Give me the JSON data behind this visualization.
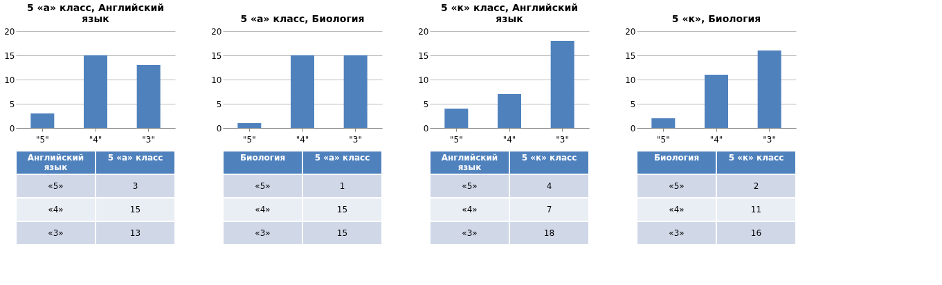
{
  "chart_data": [
    {
      "type": "bar",
      "title": "5 «а» класс, Английский язык",
      "categories": [
        "\"5\"",
        "\"4\"",
        "\"3\""
      ],
      "values": [
        3,
        15,
        13
      ],
      "color": "#4f81bd",
      "ylim": [
        0,
        20
      ],
      "yticks": [
        0,
        5,
        10,
        15,
        20
      ],
      "grid": "y",
      "annotations": [
        "Английский язык",
        "5 «а» класс",
        "«5»",
        "3",
        "«4»",
        "15",
        "«3»",
        "13"
      ]
    },
    {
      "type": "bar",
      "title": "5 «а» класс, Биология",
      "categories": [
        "\"5\"",
        "\"4\"",
        "\"3\""
      ],
      "values": [
        1,
        15,
        15
      ],
      "color": "#4f81bd",
      "ylim": [
        0,
        20
      ],
      "yticks": [
        0,
        5,
        10,
        15,
        20
      ],
      "grid": "y",
      "annotations": [
        "Биология",
        "5 «а» класс",
        "«5»",
        "1",
        "«4»",
        "15",
        "«3»",
        "15"
      ]
    },
    {
      "type": "bar",
      "title": "5 «к» класс, Английский язык",
      "categories": [
        "\"5\"",
        "\"4\"",
        "\"3\""
      ],
      "values": [
        4,
        7,
        18
      ],
      "color": "#4f81bd",
      "ylim": [
        0,
        20
      ],
      "yticks": [
        0,
        5,
        10,
        15,
        20
      ],
      "grid": "y",
      "annotations": [
        "Английский язык",
        "5 «к» класс",
        "«5»",
        "4",
        "«4»",
        "7",
        "«3»",
        "18"
      ]
    },
    {
      "type": "bar",
      "title": "5 «к», Биология",
      "categories": [
        "\"5\"",
        "\"4\"",
        "\"3\""
      ],
      "values": [
        2,
        11,
        16
      ],
      "color": "#4f81bd",
      "ylim": [
        0,
        20
      ],
      "yticks": [
        0,
        5,
        10,
        15,
        20
      ],
      "grid": "y",
      "annotations": [
        "Биология",
        "5 «к» класс",
        "«5»",
        "2",
        "«4»",
        "11",
        "«3»",
        "16"
      ]
    }
  ]
}
